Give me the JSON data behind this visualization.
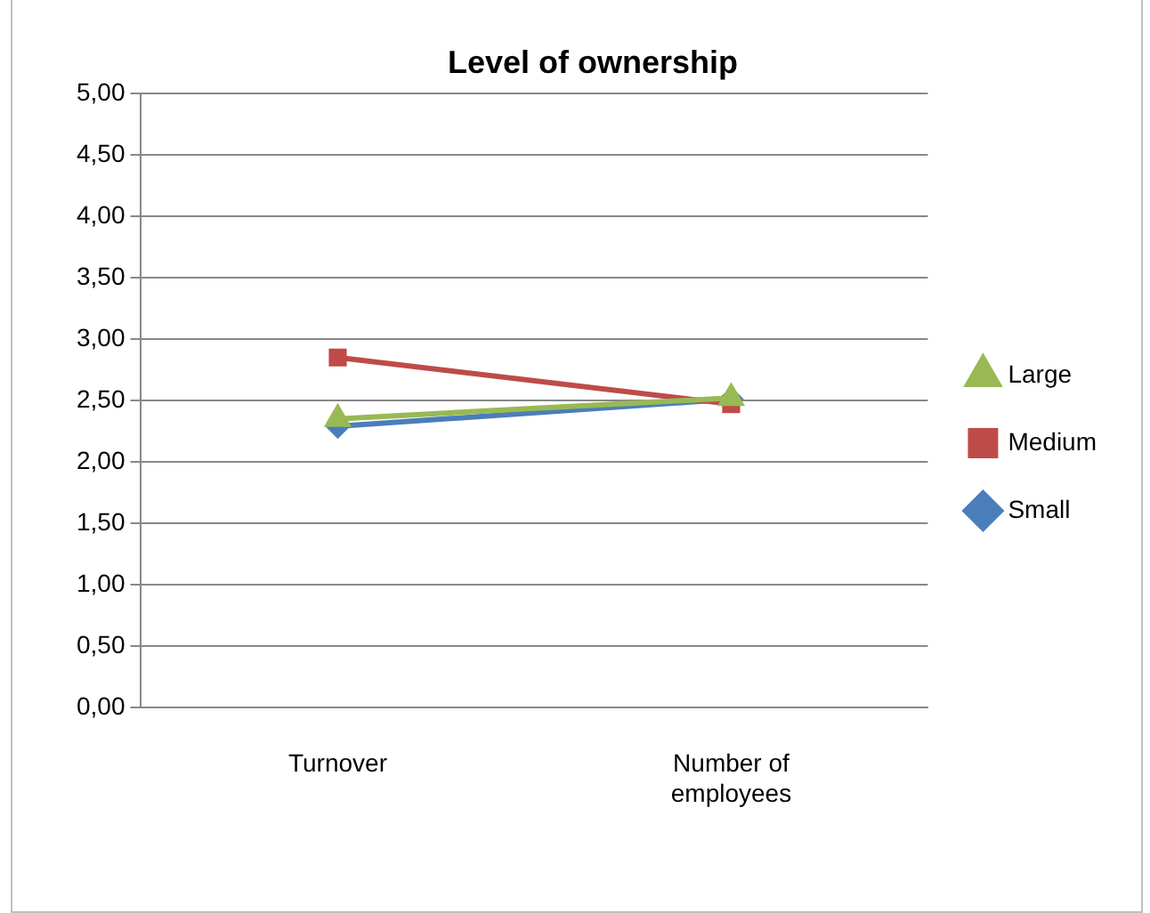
{
  "chart_data": {
    "type": "line",
    "title": "Level of ownership",
    "categories": [
      "Turnover",
      "Number of\nemployees"
    ],
    "series": [
      {
        "name": "Small",
        "color": "#4a7ebb",
        "values": [
          2.29,
          2.51
        ],
        "marker": "diamond"
      },
      {
        "name": "Medium",
        "color": "#be4b48",
        "values": [
          2.85,
          2.47
        ],
        "marker": "square"
      },
      {
        "name": "Large",
        "color": "#98b954",
        "values": [
          2.35,
          2.52
        ],
        "marker": "triangle"
      }
    ],
    "ylim": [
      0,
      5
    ],
    "yticks": [
      {
        "value": 0,
        "label": "0,00"
      },
      {
        "value": 0.5,
        "label": "0,50"
      },
      {
        "value": 1,
        "label": "1,00"
      },
      {
        "value": 1.5,
        "label": "1,50"
      },
      {
        "value": 2,
        "label": "2,00"
      },
      {
        "value": 2.5,
        "label": "2,50"
      },
      {
        "value": 3,
        "label": "3,00"
      },
      {
        "value": 3.5,
        "label": "3,50"
      },
      {
        "value": 4,
        "label": "4,00"
      },
      {
        "value": 4.5,
        "label": "4,50"
      },
      {
        "value": 5,
        "label": "5,00"
      }
    ],
    "grid": "y",
    "legend": "right"
  }
}
